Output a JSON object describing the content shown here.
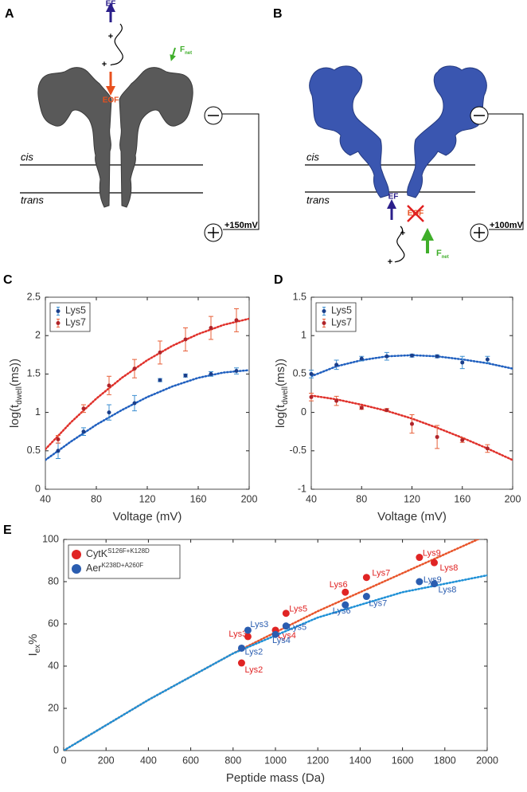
{
  "panels": {
    "a": "A",
    "b": "B",
    "c": "C",
    "d": "D",
    "e": "E"
  },
  "diagram_a": {
    "ef": "EF",
    "charge_1": "+",
    "charge_2": "+",
    "force": "F",
    "force_sub": "net",
    "eof": "EOF",
    "cis": "cis",
    "trans": "trans",
    "voltage": "+150mV"
  },
  "diagram_b": {
    "ef": "EF",
    "eof": "EOF",
    "charge_1": "+",
    "charge_2": "+",
    "force": "F",
    "force_sub": "net",
    "cis": "cis",
    "trans": "trans",
    "voltage": "+100mV"
  },
  "chart_data": [
    {
      "type": "scatter",
      "xlabel": "Voltage (mV)",
      "ylabel": {
        "text": "log(t",
        "sub": "dwell",
        "tail": "(ms))"
      },
      "x": [
        50,
        70,
        90,
        110,
        130,
        150,
        170,
        190
      ],
      "xlim": [
        40,
        200
      ],
      "xticks": [
        40,
        80,
        120,
        160,
        200
      ],
      "ylim": [
        0,
        2.5
      ],
      "yticks": [
        0,
        0.5,
        1,
        1.5,
        2,
        2.5
      ],
      "legend": "upper left",
      "grid": false,
      "series": [
        {
          "name": "Lys5",
          "color": "#1b3f8b",
          "error_color": "#3d8fd1",
          "values": [
            0.5,
            0.75,
            1.0,
            1.12,
            1.42,
            1.48,
            1.5,
            1.54
          ],
          "errors": [
            0.1,
            0.05,
            0.1,
            0.1,
            0.02,
            0.02,
            0.03,
            0.04
          ],
          "fit": {
            "color": "#1f5fbf",
            "x": [
              40,
              60,
              80,
              100,
              120,
              140,
              160,
              180,
              200
            ],
            "values": [
              0.38,
              0.62,
              0.84,
              1.03,
              1.2,
              1.34,
              1.45,
              1.52,
              1.55
            ]
          }
        },
        {
          "name": "Lys7",
          "color": "#b0242a",
          "error_color": "#e8603a",
          "values": [
            0.65,
            1.05,
            1.35,
            1.57,
            1.78,
            1.95,
            2.1,
            2.2
          ],
          "errors": [
            0.05,
            0.05,
            0.12,
            0.12,
            0.15,
            0.15,
            0.15,
            0.15
          ],
          "fit": {
            "color": "#e0302a",
            "x": [
              40,
              60,
              80,
              100,
              120,
              140,
              160,
              180,
              200
            ],
            "values": [
              0.52,
              0.87,
              1.18,
              1.45,
              1.68,
              1.87,
              2.02,
              2.14,
              2.22
            ]
          }
        }
      ]
    },
    {
      "type": "scatter",
      "xlabel": "Voltage (mV)",
      "ylabel": {
        "text": "log(t",
        "sub": "dwell",
        "tail": "(ms))"
      },
      "x": [
        40,
        60,
        80,
        100,
        120,
        140,
        160,
        180
      ],
      "xlim": [
        40,
        200
      ],
      "xticks": [
        40,
        80,
        120,
        160,
        200
      ],
      "ylim": [
        -1,
        1.5
      ],
      "yticks": [
        -1,
        -0.5,
        0,
        0.5,
        1,
        1.5
      ],
      "legend": "upper left",
      "grid": false,
      "series": [
        {
          "name": "Lys5",
          "color": "#1b3f8b",
          "error_color": "#3d8fd1",
          "values": [
            0.5,
            0.62,
            0.7,
            0.73,
            0.74,
            0.73,
            0.65,
            0.69
          ],
          "errors": [
            0.05,
            0.06,
            0.03,
            0.05,
            0.02,
            0.02,
            0.08,
            0.04
          ],
          "fit": {
            "color": "#1f5fbf",
            "x": [
              40,
              60,
              80,
              100,
              120,
              140,
              160,
              180,
              200
            ],
            "values": [
              0.47,
              0.6,
              0.68,
              0.73,
              0.745,
              0.73,
              0.69,
              0.64,
              0.57
            ]
          }
        },
        {
          "name": "Lys7",
          "color": "#b0242a",
          "error_color": "#e8603a",
          "values": [
            0.2,
            0.15,
            0.06,
            0.03,
            -0.15,
            -0.32,
            -0.36,
            -0.47
          ],
          "errors": [
            0.05,
            0.06,
            0.02,
            0.02,
            0.12,
            0.15,
            0.03,
            0.05
          ],
          "fit": {
            "color": "#e0302a",
            "x": [
              40,
              60,
              80,
              100,
              120,
              140,
              160,
              180,
              200
            ],
            "values": [
              0.22,
              0.17,
              0.1,
              0.02,
              -0.08,
              -0.2,
              -0.33,
              -0.47,
              -0.62
            ]
          }
        }
      ]
    },
    {
      "type": "scatter",
      "xlabel": "Peptide mass (Da)",
      "ylabel": {
        "text": "I",
        "sub": "ex",
        "tail": "%"
      },
      "x": [
        840,
        870,
        1000,
        1050,
        1330,
        1430,
        1750,
        1680
      ],
      "xlim": [
        0,
        2000
      ],
      "xticks": [
        0,
        200,
        400,
        600,
        800,
        1000,
        1200,
        1400,
        1600,
        1800,
        2000
      ],
      "ylim": [
        0,
        100
      ],
      "yticks": [
        0,
        20,
        40,
        60,
        80,
        100
      ],
      "legend": "upper left",
      "grid": false,
      "series": [
        {
          "name": "CytK",
          "name_sup": "S126F+K128D",
          "color": "#e02424",
          "point_labels": [
            "Lys2",
            "Lys3",
            "Lys4",
            "Lys5",
            "Lys6",
            "Lys7",
            "Lys8",
            "Lys9"
          ],
          "values": [
            41.5,
            54,
            57,
            65,
            75,
            82,
            89,
            91.5
          ],
          "fit": {
            "color": "#e8542a",
            "x": [
              0,
              400,
              800,
              1200,
              1600,
              2000
            ],
            "values": [
              0,
              24,
              46,
              66,
              84,
              102
            ]
          }
        },
        {
          "name": "Aer",
          "name_sup": "K238D+A260F",
          "color": "#2a5db0",
          "point_labels": [
            "Lys2",
            "Lys3",
            "Lys4",
            "Lys5",
            "Lys6",
            "Lys7",
            "Lys8",
            "Lys9"
          ],
          "values": [
            48.5,
            57,
            55,
            59,
            69,
            73,
            79,
            80
          ],
          "fit": {
            "color": "#1e90d6",
            "x": [
              0,
              400,
              800,
              1200,
              1600,
              2000
            ],
            "values": [
              0,
              24,
              46,
              63,
              75,
              83
            ]
          }
        }
      ]
    }
  ]
}
